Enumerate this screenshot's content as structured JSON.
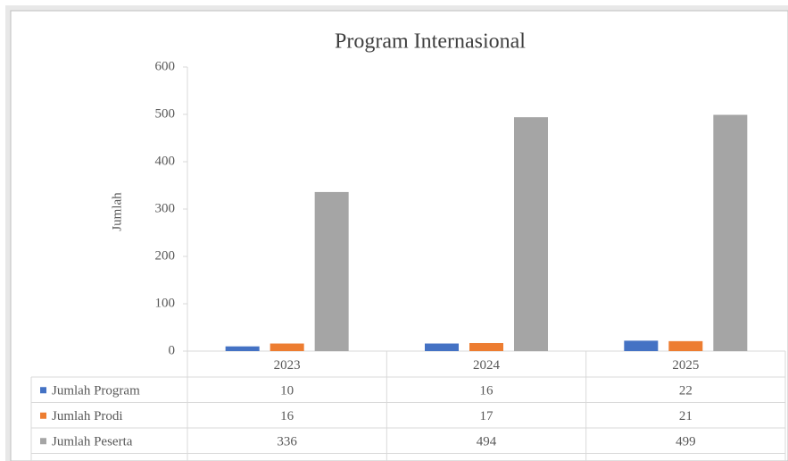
{
  "chart_data": {
    "type": "bar",
    "title": "Program Internasional",
    "y_label": "Jumlah",
    "categories": [
      "2023",
      "2024",
      "2025"
    ],
    "series": [
      {
        "name": "Jumlah Program",
        "color": "#4472c4",
        "values": [
          10,
          16,
          22
        ]
      },
      {
        "name": "Jumlah Prodi",
        "color": "#ed7d31",
        "values": [
          16,
          17,
          21
        ]
      },
      {
        "name": "Jumlah Peserta",
        "color": "#a5a5a5",
        "values": [
          336,
          494,
          499
        ]
      }
    ],
    "ylim": [
      0,
      600
    ],
    "yticks": [
      0,
      100,
      200,
      300,
      400,
      500,
      600
    ],
    "grid": false,
    "data_table": true
  }
}
